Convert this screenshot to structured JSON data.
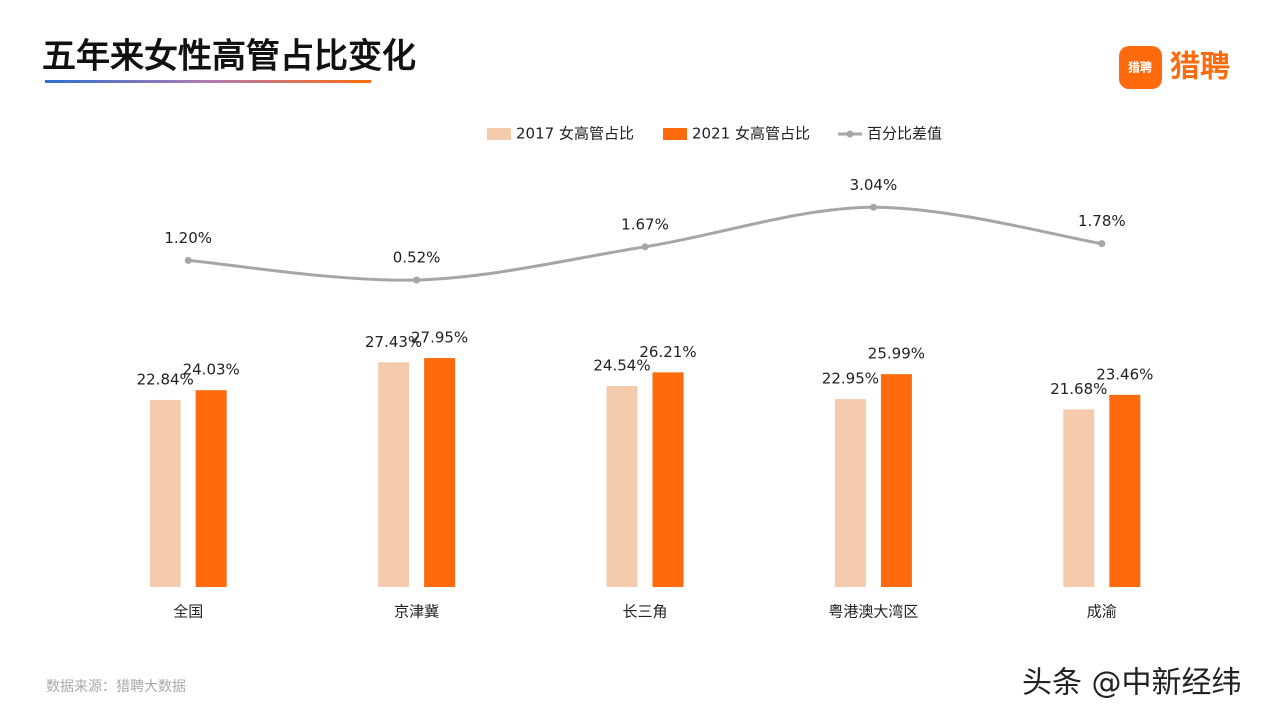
{
  "chart_data": {
    "type": "bar-line",
    "title": "五年来女性高管占比变化",
    "categories": [
      "全国",
      "京津冀",
      "长三角",
      "粤港澳大湾区",
      "成渝"
    ],
    "series": [
      {
        "name": "2017 女高管占比",
        "color": "#F5CBAE",
        "type": "bar",
        "values": [
          22.84,
          27.43,
          24.54,
          22.95,
          21.68
        ],
        "value_labels": [
          "22.84%",
          "27.43%",
          "24.54%",
          "22.95%",
          "21.68%"
        ]
      },
      {
        "name": "2021 女高管占比",
        "color": "#FF6A0D",
        "type": "bar",
        "values": [
          24.03,
          27.95,
          26.21,
          25.99,
          23.46
        ],
        "value_labels": [
          "24.03%",
          "27.95%",
          "26.21%",
          "25.99%",
          "23.46%"
        ]
      },
      {
        "name": "百分比差值",
        "color": "#A6A6A6",
        "type": "line",
        "axis": "y2",
        "values": [
          1.2,
          0.52,
          1.67,
          3.04,
          1.78
        ],
        "value_labels": [
          "1.20%",
          "0.52%",
          "1.67%",
          "3.04%",
          "1.78%"
        ]
      }
    ],
    "ylim": [
      0,
      30
    ],
    "y2lim": [
      0,
      3.5
    ],
    "legend": "top",
    "smooth": true
  },
  "logo": "猎聘",
  "source": "数据来源：猎聘大数据",
  "watermark": "头条 @中新经纬"
}
